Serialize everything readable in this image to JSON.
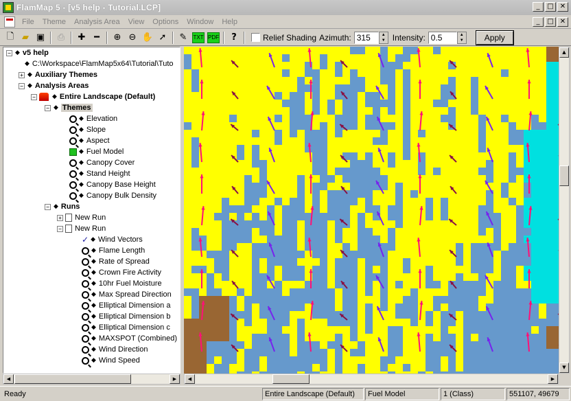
{
  "window": {
    "title": "FlamMap 5 - [v5 help - Tutorial.LCP]",
    "minimize": "_",
    "restore": "□",
    "close": "✕"
  },
  "menu": {
    "items": [
      "File",
      "Theme",
      "Analysis Area",
      "View",
      "Options",
      "Window",
      "Help"
    ]
  },
  "toolbar": {
    "relief_label": "Relief Shading",
    "azimuth_label": "Azimuth:",
    "azimuth_value": "315",
    "intensity_label": "Intensity:",
    "intensity_value": "0.5",
    "apply_label": "Apply",
    "txt_button": "TXT",
    "pdf_button": "PDF",
    "help_icon": "?"
  },
  "tree": {
    "root": "v5 help",
    "path": "C:\\Workspace\\FlamMap5x64\\Tutorial\\Tuto",
    "auxiliary": "Auxiliary Themes",
    "analysis": "Analysis Areas",
    "landscape": "Entire Landscape (Default)",
    "themes": "Themes",
    "theme_items": [
      "Elevation",
      "Slope",
      "Aspect",
      "Fuel Model",
      "Canopy Cover",
      "Stand Height",
      "Canopy Base Height",
      "Canopy Bulk Density"
    ],
    "runs": "Runs",
    "run1": "New Run",
    "run2": "New Run",
    "run_outputs": [
      "Wind Vectors",
      "Flame Length",
      "Rate of Spread",
      "Crown Fire Activity",
      "10hr Fuel Moisture",
      "Max Spread Direction",
      "Elliptical Dimension a",
      "Elliptical Dimension b",
      "Elliptical Dimension c",
      "MAXSPOT (Combined)",
      "Wind Direction",
      "Wind Speed"
    ]
  },
  "status": {
    "ready": "Ready",
    "area": "Entire Landscape (Default)",
    "theme": "Fuel Model",
    "value": "1 (Class)",
    "coords": "551107, 49679"
  },
  "colors": {
    "yellow_fuel": "#ffff00",
    "blue_fuel": "#6699cc",
    "brown_fuel": "#996633",
    "cyan_fuel": "#00e0e0",
    "arrow_magenta": "#ff1177",
    "arrow_purple": "#7722ee",
    "arrow_maroon": "#881144"
  }
}
